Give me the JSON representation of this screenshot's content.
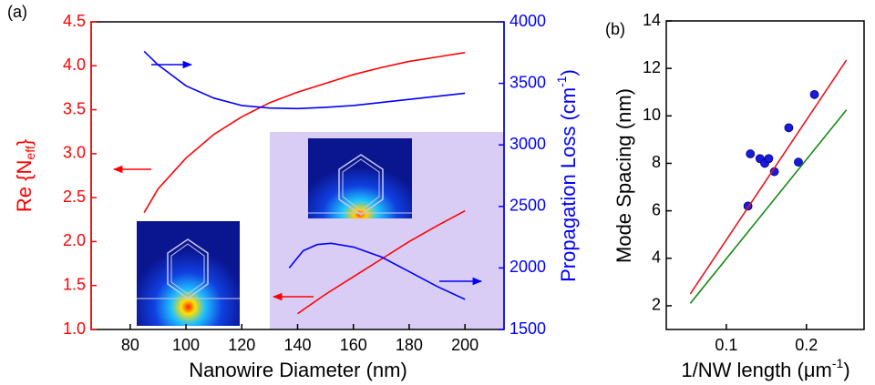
{
  "chart_data": [
    {
      "type": "line",
      "panel_label": "(a)",
      "xlabel": "Nanowire Diameter (nm)",
      "ylabel_parts": [
        "Re {N",
        "eff",
        "}"
      ],
      "y2label_parts": [
        "Propagation Loss (cm",
        "-1",
        ")"
      ],
      "xlim": [
        66,
        214
      ],
      "xticks": [
        80,
        100,
        120,
        140,
        160,
        180,
        200
      ],
      "ylim": [
        1.0,
        4.5
      ],
      "yticks": [
        {
          "value": 1,
          "label": "1.0"
        },
        1.5,
        {
          "value": 2,
          "label": "2.0"
        },
        2.5,
        {
          "value": 3,
          "label": "3.0"
        },
        3.5,
        {
          "value": 4,
          "label": "4.0"
        },
        4.5
      ],
      "y2lim": [
        1500,
        4000
      ],
      "y2ticks": [
        1500,
        2000,
        2500,
        3000,
        3500,
        4000
      ],
      "ycolor": "#ff0000",
      "y2color": "#0000ff",
      "series": [
        {
          "color": "#ff0000",
          "x": [
            85,
            90,
            100,
            110,
            120,
            130,
            140,
            150,
            160,
            170,
            180,
            190,
            200
          ],
          "values": [
            2.33,
            2.6,
            2.95,
            3.22,
            3.42,
            3.58,
            3.7,
            3.8,
            3.9,
            3.98,
            4.05,
            4.1,
            4.15
          ]
        },
        {
          "color": "#0000ff",
          "axis": "y2",
          "x": [
            85,
            90,
            100,
            110,
            120,
            130,
            140,
            150,
            160,
            170,
            180,
            190,
            200
          ],
          "values": [
            3760,
            3650,
            3480,
            3380,
            3320,
            3300,
            3295,
            3305,
            3320,
            3345,
            3370,
            3395,
            3420
          ]
        },
        {
          "color": "#ff0000",
          "x": [
            140,
            150,
            160,
            170,
            180,
            190,
            200
          ],
          "values": [
            1.18,
            1.4,
            1.6,
            1.8,
            2.0,
            2.18,
            2.35
          ]
        },
        {
          "color": "#0000ff",
          "axis": "y2",
          "x": [
            137,
            142,
            147,
            152,
            160,
            170,
            180,
            190,
            200
          ],
          "values": [
            2000,
            2140,
            2190,
            2200,
            2170,
            2090,
            1970,
            1850,
            1745
          ]
        }
      ]
    },
    {
      "type": "scatter",
      "panel_label": "(b)",
      "xlabel_parts": [
        "1/NW length (μm",
        "-1",
        ")"
      ],
      "ylabel": "Mode Spacing (nm)",
      "xlim": [
        0.025,
        0.272
      ],
      "xticks": [
        0.1,
        0.2
      ],
      "ylim": [
        1,
        14
      ],
      "yticks": [
        2,
        4,
        6,
        8,
        10,
        12,
        14
      ],
      "series": [
        {
          "kind": "points",
          "color": "#1a1adc",
          "x": [
            0.127,
            0.13,
            0.142,
            0.148,
            0.153,
            0.16,
            0.178,
            0.19,
            0.21
          ],
          "values": [
            6.2,
            8.4,
            8.2,
            8.0,
            8.2,
            7.65,
            9.5,
            8.05,
            10.9
          ]
        },
        {
          "kind": "line",
          "color": "#e8141e",
          "x": [
            0.055,
            0.25
          ],
          "values": [
            2.5,
            12.35
          ]
        },
        {
          "kind": "line",
          "color": "#158a15",
          "x": [
            0.055,
            0.25
          ],
          "values": [
            2.1,
            10.25
          ]
        }
      ]
    }
  ]
}
